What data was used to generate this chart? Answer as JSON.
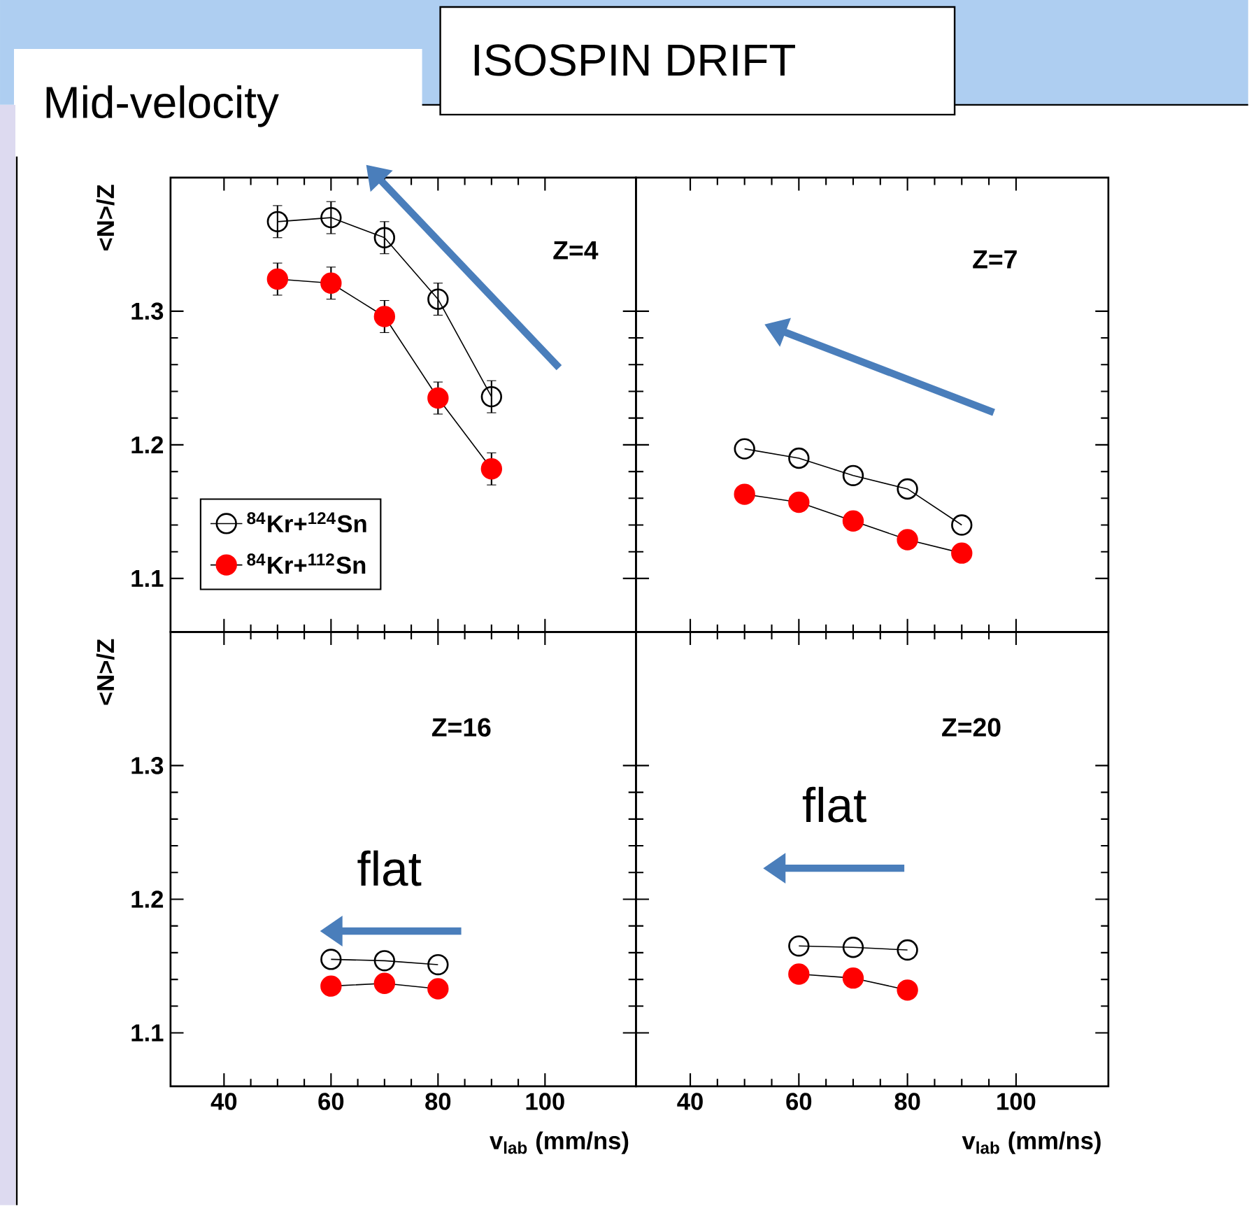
{
  "chart_data": [
    {
      "type": "line",
      "title": "Z=4",
      "ylabel": "<N>/Z",
      "x": [
        50,
        60,
        70,
        80,
        90
      ],
      "xlim": [
        30,
        117
      ],
      "ylim": [
        1.06,
        1.4
      ],
      "xticks": [
        40,
        60,
        80,
        100
      ],
      "yticks": [
        1.1,
        1.2,
        1.3
      ],
      "tick_labels": "y",
      "legend": "bottom left",
      "marker": "circle",
      "annotations": [
        "ISOSPIN DRIFT",
        "Mid-velocity"
      ],
      "series": [
        {
          "name": "$^{84}$Kr+$^{124}$Sn",
          "color": "#000000",
          "values": [
            1.367,
            1.37,
            1.355,
            1.309,
            1.236
          ],
          "errors": [
            0.012,
            0.012,
            0.012,
            0.012,
            0.012
          ]
        },
        {
          "name": "$^{84}$Kr+$^{112}$Sn",
          "color": "#ff0000",
          "values": [
            1.324,
            1.321,
            1.296,
            1.235,
            1.182
          ],
          "errors": [
            0.012,
            0.012,
            0.012,
            0.012,
            0.012
          ]
        }
      ]
    },
    {
      "type": "line",
      "title": "Z=7",
      "x": [
        50,
        60,
        70,
        80,
        90
      ],
      "xlim": [
        30,
        117
      ],
      "ylim": [
        1.06,
        1.4
      ],
      "xticks": [
        40,
        60,
        80,
        100
      ],
      "yticks": [
        1.1,
        1.2,
        1.3
      ],
      "tick_labels": false,
      "marker": "circle",
      "series": [
        {
          "color": "#000000",
          "values": [
            1.197,
            1.19,
            1.177,
            1.167,
            1.14
          ]
        },
        {
          "color": "#ff0000",
          "values": [
            1.163,
            1.157,
            1.143,
            1.129,
            1.119
          ]
        }
      ]
    },
    {
      "type": "line",
      "title": "Z=16",
      "xlabel": "v$_{lab}$ (mm/ns)",
      "ylabel": "<N>/Z",
      "x": [
        60,
        70,
        80
      ],
      "xlim": [
        30,
        117
      ],
      "ylim": [
        1.06,
        1.4
      ],
      "xticks": [
        40,
        60,
        80,
        100
      ],
      "yticks": [
        1.1,
        1.2,
        1.3
      ],
      "marker": "circle",
      "annotations": [
        "flat"
      ],
      "series": [
        {
          "color": "#000000",
          "values": [
            1.155,
            1.154,
            1.151
          ]
        },
        {
          "color": "#ff0000",
          "values": [
            1.135,
            1.137,
            1.133
          ]
        }
      ]
    },
    {
      "type": "line",
      "title": "Z=20",
      "xlabel": "v$_{lab}$ (mm/ns)",
      "x": [
        60,
        70,
        80
      ],
      "xlim": [
        30,
        117
      ],
      "ylim": [
        1.06,
        1.4
      ],
      "xticks": [
        40,
        60,
        80,
        100
      ],
      "yticks": [
        1.1,
        1.2,
        1.3
      ],
      "tick_labels": "x",
      "marker": "circle",
      "annotations": [
        "flat"
      ],
      "series": [
        {
          "color": "#000000",
          "values": [
            1.165,
            1.164,
            1.162
          ]
        },
        {
          "color": "#ff0000",
          "values": [
            1.144,
            1.141,
            1.132
          ]
        }
      ]
    }
  ]
}
